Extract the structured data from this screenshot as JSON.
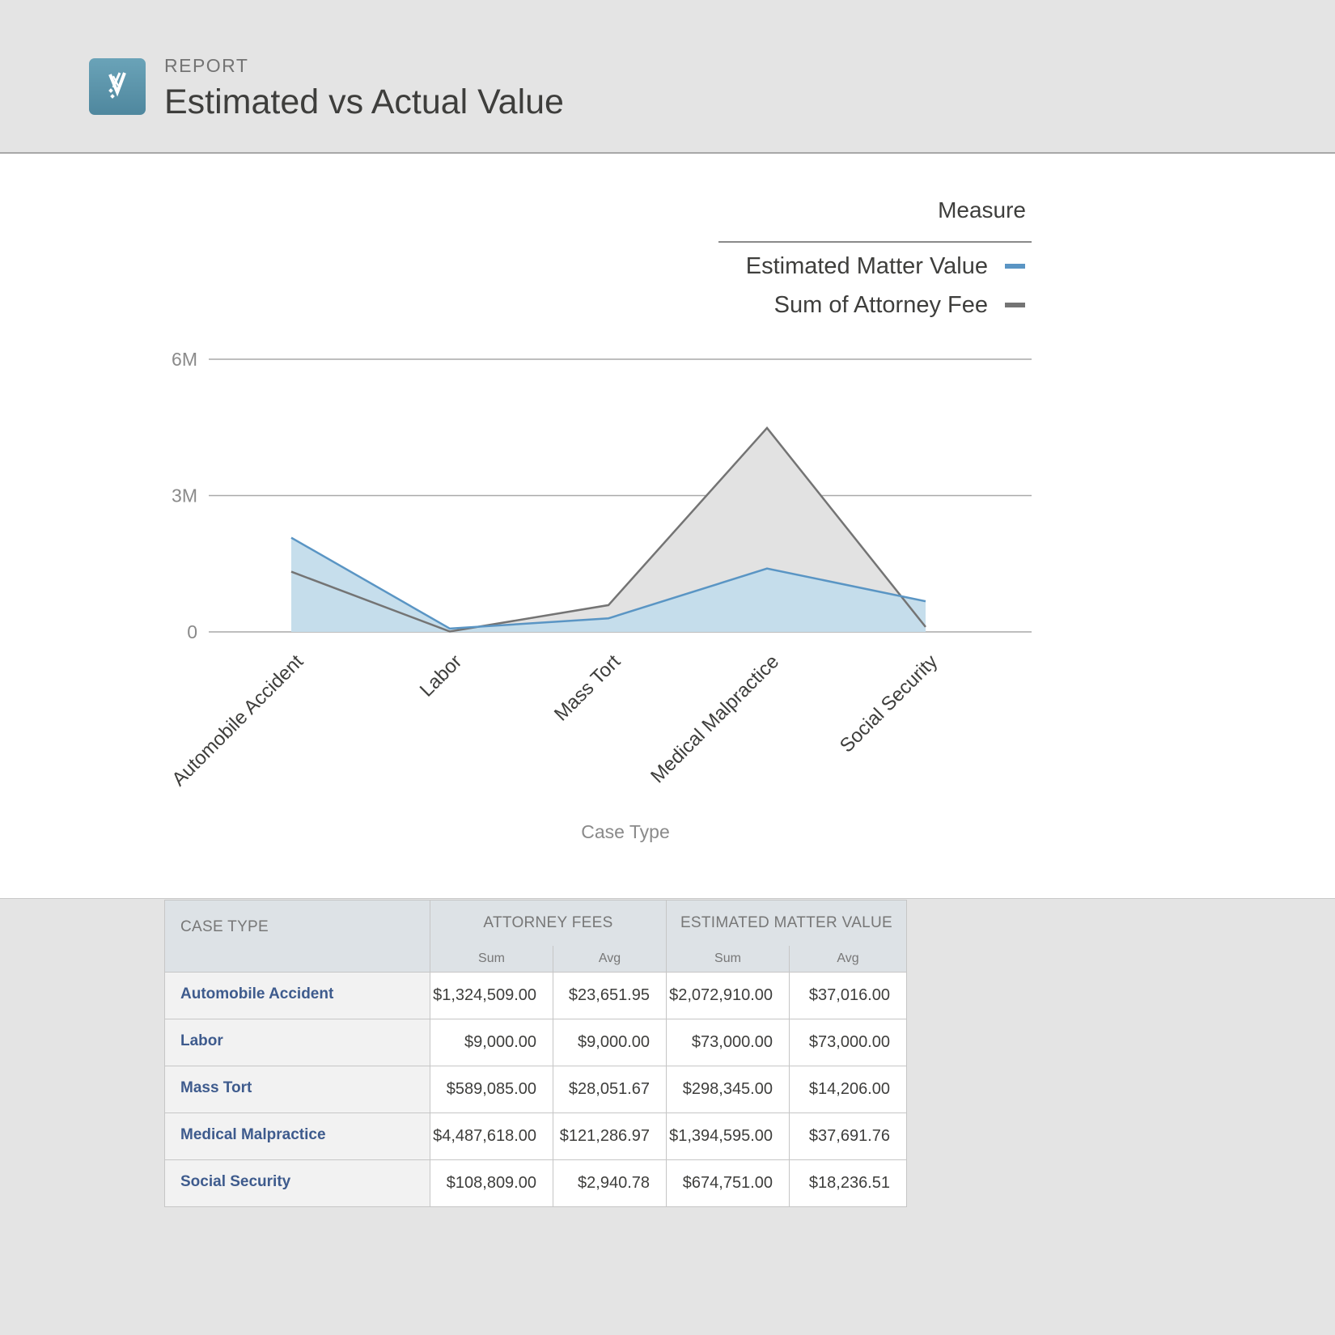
{
  "header": {
    "eyebrow": "REPORT",
    "title": "Estimated vs Actual Value",
    "icon": "app-logo-icon"
  },
  "chart_data": {
    "type": "area",
    "title": "",
    "xlabel": "Case Type",
    "ylabel": "",
    "ylim": [
      0,
      6000000
    ],
    "yticks": [
      0,
      3000000,
      6000000
    ],
    "ytick_labels": [
      "0",
      "3M",
      "6M"
    ],
    "grid": true,
    "legend_title": "Measure",
    "legend_position": "top-right",
    "categories": [
      "Automobile Accident",
      "Labor",
      "Mass Tort",
      "Medical Malpractice",
      "Social Security"
    ],
    "series": [
      {
        "name": "Estimated Matter Value",
        "color": "#5a95c4",
        "fill": "#c3dceb",
        "values": [
          2072910,
          73000,
          298345,
          1394595,
          674751
        ]
      },
      {
        "name": "Sum of Attorney Fee",
        "color": "#747474",
        "fill": "#e2e2e2",
        "values": [
          1324509,
          9000,
          589085,
          4487618,
          108809
        ]
      }
    ]
  },
  "table": {
    "case_type_header": "CASE TYPE",
    "attorney_fees_header": "ATTORNEY FEES",
    "estimated_value_header": "ESTIMATED MATTER VALUE",
    "sum_label": "Sum",
    "avg_label": "Avg",
    "rows": [
      {
        "case_type": "Automobile Accident",
        "fee_sum": "$1,324,509.00",
        "fee_avg": "$23,651.95",
        "emv_sum": "$2,072,910.00",
        "emv_avg": "$37,016.00"
      },
      {
        "case_type": "Labor",
        "fee_sum": "$9,000.00",
        "fee_avg": "$9,000.00",
        "emv_sum": "$73,000.00",
        "emv_avg": "$73,000.00"
      },
      {
        "case_type": "Mass Tort",
        "fee_sum": "$589,085.00",
        "fee_avg": "$28,051.67",
        "emv_sum": "$298,345.00",
        "emv_avg": "$14,206.00"
      },
      {
        "case_type": "Medical Malpractice",
        "fee_sum": "$4,487,618.00",
        "fee_avg": "$121,286.97",
        "emv_sum": "$1,394,595.00",
        "emv_avg": "$37,691.76"
      },
      {
        "case_type": "Social Security",
        "fee_sum": "$108,809.00",
        "fee_avg": "$2,940.78",
        "emv_sum": "$674,751.00",
        "emv_avg": "$18,236.51"
      }
    ]
  }
}
